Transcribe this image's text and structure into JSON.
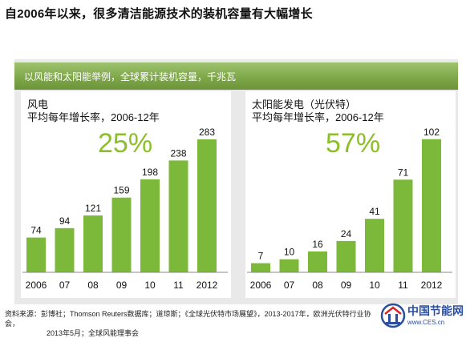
{
  "title": "自2006年以来，很多清洁能源技术的装机容量有大幅增长",
  "banner": "以风能和太阳能举例，全球累计装机容量，千兆瓦",
  "chart_data": [
    {
      "type": "bar",
      "title": "风电",
      "subtitle": "平均每年增长率，2006-12年",
      "growth_rate": "25%",
      "categories": [
        "2006",
        "07",
        "08",
        "09",
        "10",
        "11",
        "2012"
      ],
      "values": [
        74,
        94,
        121,
        159,
        198,
        238,
        283
      ],
      "ylim": [
        0,
        300
      ],
      "bar_color": "#7cb83a",
      "grid": false
    },
    {
      "type": "bar",
      "title": "太阳能发电（光伏特）",
      "subtitle": "平均每年增长率，2006-12年",
      "growth_rate": "57%",
      "categories": [
        "2006",
        "07",
        "08",
        "09",
        "10",
        "11",
        "2012"
      ],
      "values": [
        7,
        10,
        16,
        24,
        41,
        71,
        102
      ],
      "ylim": [
        0,
        108
      ],
      "bar_color": "#7cb83a",
      "grid": false
    }
  ],
  "footer": {
    "line1": "资料来源：彭博社；Thomson Reuters数据库；道琼斯；《全球光伏特市场展望》，2013-2017年，欧洲光伏特行业协会，",
    "line2": "2013年5月；全球风能理事会"
  },
  "logo": {
    "name": "中国节能网",
    "url": "www.CES.cn",
    "icon": "ces-logo-icon"
  },
  "colors": {
    "accent_green": "#7cb83a",
    "big_number_green": "#8cbf2a",
    "banner_green": "#7fa84a",
    "frame_gray": "#e9e9e9",
    "logo_blue": "#2b4f9e"
  }
}
